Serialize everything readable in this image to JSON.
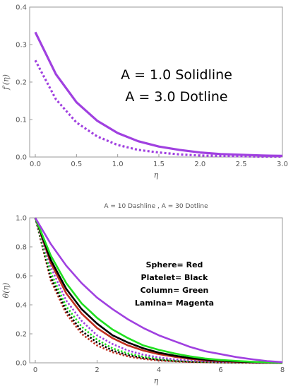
{
  "chart_data": [
    {
      "type": "line",
      "xlabel": "η",
      "ylabel": "f′(η)",
      "xlim": [
        0,
        3.0
      ],
      "ylim": [
        0,
        0.4
      ],
      "xticks": [
        "0.0",
        "0.5",
        "1.0",
        "1.5",
        "2.0",
        "2.5",
        "3.0"
      ],
      "yticks": [
        "0.0",
        "0.1",
        "0.2",
        "0.3",
        "0.4"
      ],
      "grid": false,
      "annotations": [
        "A = 1.0 Solidline",
        "A = 3.0 Dotline"
      ],
      "series": [
        {
          "style": "solid",
          "color": "#a040e0",
          "x": [
            0,
            0.25,
            0.5,
            0.75,
            1.0,
            1.25,
            1.5,
            1.75,
            2.0,
            2.25,
            2.5,
            2.75,
            3.0
          ],
          "y": [
            0.333,
            0.221,
            0.146,
            0.097,
            0.064,
            0.042,
            0.028,
            0.019,
            0.012,
            0.008,
            0.006,
            0.004,
            0.003
          ]
        },
        {
          "style": "dotted",
          "color": "#a040e0",
          "x": [
            0,
            0.25,
            0.5,
            0.75,
            1.0,
            1.25,
            1.5,
            1.75,
            2.0,
            2.25,
            2.5,
            2.75,
            3.0
          ],
          "y": [
            0.258,
            0.154,
            0.092,
            0.055,
            0.032,
            0.019,
            0.012,
            0.007,
            0.004,
            0.003,
            0.002,
            0.001,
            0.001
          ]
        }
      ]
    },
    {
      "type": "line",
      "title": "A = 10  Dashline  , A = 30  Dotline",
      "xlabel": "η",
      "ylabel": "θ(η)",
      "xlim": [
        0,
        8
      ],
      "ylim": [
        0,
        1.0
      ],
      "xticks": [
        "0",
        "2",
        "4",
        "6",
        "8"
      ],
      "yticks": [
        "0.0",
        "0.2",
        "0.4",
        "0.6",
        "0.8",
        "1.0"
      ],
      "grid": false,
      "annotations": [
        "Sphere= Red",
        "Platelet= Black",
        "Column= Green",
        "Lamina= Magenta"
      ],
      "series": [
        {
          "style": "solid",
          "color": "#a040e0",
          "x": [
            0,
            0.5,
            1,
            1.5,
            2,
            2.5,
            3,
            3.5,
            4,
            4.5,
            5,
            5.5,
            6,
            6.5,
            7,
            7.5,
            8
          ],
          "y": [
            1.0,
            0.82,
            0.67,
            0.55,
            0.45,
            0.37,
            0.3,
            0.24,
            0.19,
            0.15,
            0.11,
            0.08,
            0.06,
            0.04,
            0.025,
            0.012,
            0.005
          ]
        },
        {
          "style": "solid",
          "color": "#20e020",
          "x": [
            0,
            0.5,
            1,
            1.5,
            2,
            2.5,
            3,
            3.5,
            4,
            4.5,
            5,
            5.5,
            6,
            6.5,
            7,
            7.5,
            8
          ],
          "y": [
            1.0,
            0.74,
            0.55,
            0.41,
            0.31,
            0.23,
            0.17,
            0.12,
            0.09,
            0.065,
            0.045,
            0.03,
            0.02,
            0.013,
            0.008,
            0.004,
            0.002
          ]
        },
        {
          "style": "solid",
          "color": "#000000",
          "x": [
            0,
            0.5,
            1,
            1.5,
            2,
            2.5,
            3,
            3.5,
            4,
            4.5,
            5,
            5.5,
            6,
            6.5,
            7,
            7.5,
            8
          ],
          "y": [
            1.0,
            0.71,
            0.51,
            0.37,
            0.27,
            0.19,
            0.14,
            0.1,
            0.07,
            0.05,
            0.033,
            0.022,
            0.014,
            0.009,
            0.005,
            0.003,
            0.001
          ]
        },
        {
          "style": "solid",
          "color": "#c03020",
          "x": [
            0,
            0.5,
            1,
            1.5,
            2,
            2.5,
            3,
            3.5,
            4,
            4.5,
            5,
            5.5,
            6,
            6.5,
            7,
            7.5,
            8
          ],
          "y": [
            1.0,
            0.69,
            0.48,
            0.34,
            0.24,
            0.17,
            0.12,
            0.085,
            0.06,
            0.042,
            0.028,
            0.018,
            0.011,
            0.007,
            0.004,
            0.002,
            0.001
          ]
        },
        {
          "style": "dotted",
          "color": "#a040e0",
          "x": [
            0,
            0.5,
            1,
            1.5,
            2,
            2.5,
            3,
            3.5,
            4,
            4.5,
            5,
            5.5,
            6,
            6.5,
            7,
            7.5,
            8
          ],
          "y": [
            1.0,
            0.66,
            0.43,
            0.29,
            0.19,
            0.13,
            0.085,
            0.056,
            0.037,
            0.024,
            0.016,
            0.01,
            0.006,
            0.004,
            0.002,
            0.001,
            0.0
          ]
        },
        {
          "style": "dotted",
          "color": "#20e020",
          "x": [
            0,
            0.5,
            1,
            1.5,
            2,
            2.5,
            3,
            3.5,
            4,
            4.5,
            5,
            5.5,
            6,
            6.5,
            7,
            7.5,
            8
          ],
          "y": [
            1.0,
            0.62,
            0.39,
            0.25,
            0.16,
            0.1,
            0.065,
            0.042,
            0.027,
            0.017,
            0.011,
            0.007,
            0.004,
            0.002,
            0.001,
            0.0,
            0.0
          ]
        },
        {
          "style": "dotted",
          "color": "#000000",
          "x": [
            0,
            0.5,
            1,
            1.5,
            2,
            2.5,
            3,
            3.5,
            4,
            4.5,
            5,
            5.5,
            6,
            6.5,
            7,
            7.5,
            8
          ],
          "y": [
            1.0,
            0.59,
            0.36,
            0.22,
            0.14,
            0.085,
            0.053,
            0.033,
            0.021,
            0.013,
            0.008,
            0.005,
            0.003,
            0.002,
            0.001,
            0.0,
            0.0
          ]
        },
        {
          "style": "dotted",
          "color": "#c03020",
          "x": [
            0,
            0.5,
            1,
            1.5,
            2,
            2.5,
            3,
            3.5,
            4,
            4.5,
            5,
            5.5,
            6,
            6.5,
            7,
            7.5,
            8
          ],
          "y": [
            1.0,
            0.57,
            0.34,
            0.2,
            0.12,
            0.073,
            0.044,
            0.027,
            0.016,
            0.01,
            0.006,
            0.004,
            0.002,
            0.001,
            0.0,
            0.0,
            0.0
          ]
        }
      ]
    }
  ]
}
